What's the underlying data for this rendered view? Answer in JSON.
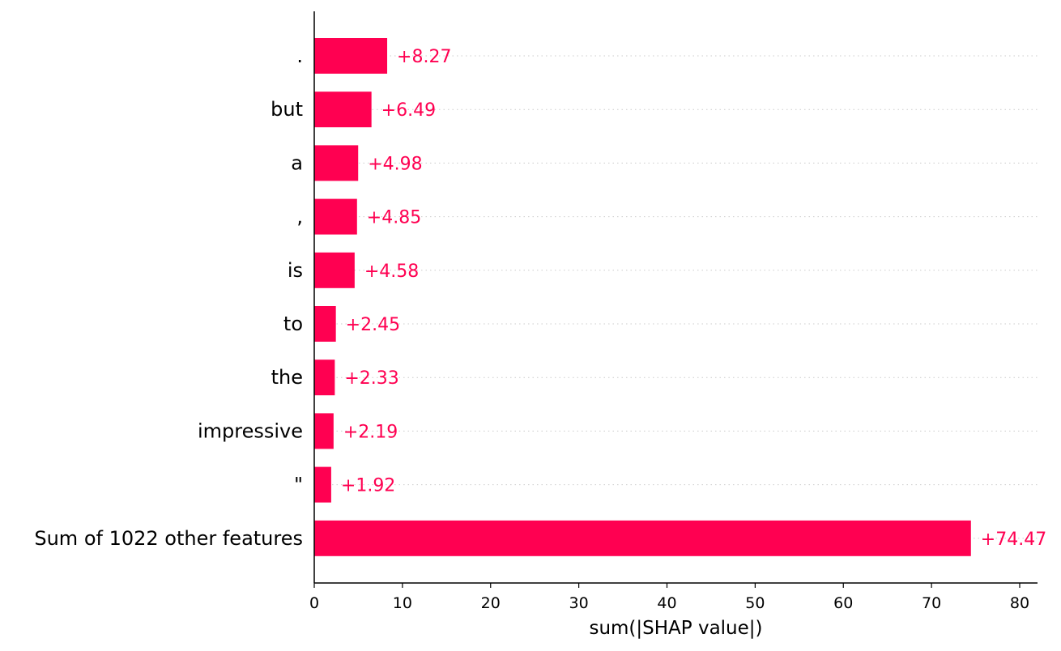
{
  "chart_data": {
    "type": "bar",
    "orientation": "horizontal",
    "categories": [
      ".",
      "but",
      "a",
      ",",
      "is",
      "to",
      "the",
      "impressive",
      "\"",
      "Sum of 1022 other features"
    ],
    "values": [
      8.27,
      6.49,
      4.98,
      4.85,
      4.58,
      2.45,
      2.33,
      2.19,
      1.92,
      74.47
    ],
    "value_labels": [
      "+8.27",
      "+6.49",
      "+4.98",
      "+4.85",
      "+4.58",
      "+2.45",
      "+2.33",
      "+2.19",
      "+1.92",
      "+74.47"
    ],
    "xlabel": "sum(|SHAP value|)",
    "ylabel": "",
    "xlim": [
      0,
      82
    ],
    "xticks": [
      0,
      10,
      20,
      30,
      40,
      50,
      60,
      70,
      80
    ],
    "grid": "dotted horizontal guide lines per row",
    "legend": "none",
    "colors": {
      "bar": "#ff0051",
      "value_label": "#ff0051",
      "axis": "#000000",
      "guide": "#cccccc"
    }
  }
}
